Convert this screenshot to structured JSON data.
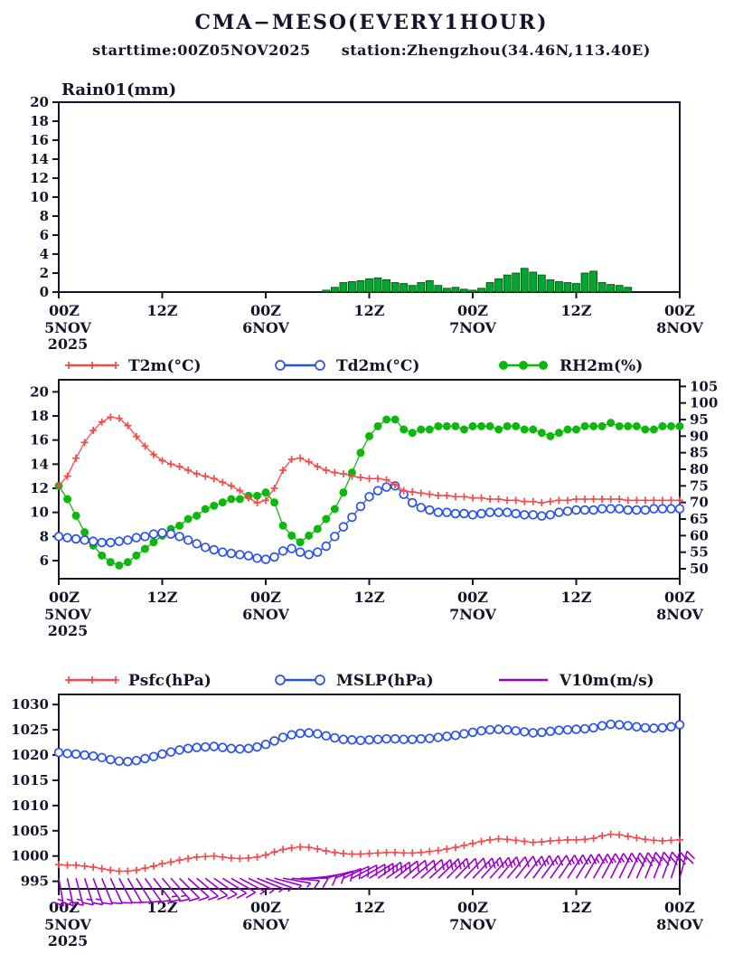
{
  "header": {
    "title": "CMA−MESO(EVERY1HOUR)",
    "starttime": "starttime:00Z05NOV2025",
    "station": "station:Zhengzhou(34.46N,113.40E)"
  },
  "colors": {
    "text": "#14142a",
    "red": "#f24b4b",
    "blue": "#2a52e8",
    "green": "#0cb80c",
    "rain_fill": "#00a633",
    "rain_edge": "#004d00",
    "purple": "#9a00cc"
  },
  "time_axis": {
    "step_hours": 1,
    "total_hours": 72,
    "tick_hours": [
      0,
      12,
      24,
      36,
      48,
      60,
      72
    ],
    "tick_labels": [
      "00Z",
      "12Z",
      "00Z",
      "12Z",
      "00Z",
      "12Z",
      "00Z"
    ],
    "date_labels": [
      {
        "hour": 0,
        "text": "5NOV",
        "text2": "2025"
      },
      {
        "hour": 24,
        "text": "6NOV"
      },
      {
        "hour": 48,
        "text": "7NOV"
      },
      {
        "hour": 72,
        "text": "8NOV"
      }
    ]
  },
  "chart_data": [
    {
      "type": "bar",
      "title": "Rain01(mm)",
      "ylim": [
        0,
        20
      ],
      "yticks": [
        0,
        2,
        4,
        6,
        8,
        10,
        12,
        14,
        16,
        18,
        20
      ],
      "values": [
        0,
        0,
        0,
        0,
        0,
        0,
        0,
        0,
        0,
        0,
        0,
        0,
        0,
        0,
        0,
        0,
        0,
        0,
        0,
        0,
        0,
        0,
        0,
        0,
        0,
        0,
        0,
        0,
        0,
        0,
        0,
        0.2,
        0.5,
        1.0,
        1.1,
        1.2,
        1.4,
        1.5,
        1.3,
        1.0,
        0.9,
        0.7,
        1.0,
        1.2,
        0.7,
        0.4,
        0.5,
        0.3,
        0.2,
        0.4,
        1.0,
        1.4,
        1.8,
        2.0,
        2.5,
        2.1,
        1.8,
        1.3,
        1.1,
        1.0,
        0.9,
        2.0,
        2.2,
        1.0,
        0.8,
        0.7,
        0.5,
        0,
        0,
        0,
        0,
        0,
        0
      ]
    },
    {
      "type": "line",
      "left_ylim": [
        4.5,
        21
      ],
      "left_yticks": [
        6,
        8,
        10,
        12,
        14,
        16,
        18,
        20
      ],
      "right_ylim": [
        47,
        107
      ],
      "right_yticks": [
        50,
        55,
        60,
        65,
        70,
        75,
        80,
        85,
        90,
        95,
        100,
        105
      ],
      "series": [
        {
          "name": "T2m(°C)",
          "marker": "plus",
          "color": "red",
          "axis": "left",
          "values": [
            12.2,
            13.0,
            14.5,
            15.8,
            16.8,
            17.5,
            17.9,
            17.8,
            17.2,
            16.3,
            15.5,
            14.8,
            14.3,
            14.0,
            13.8,
            13.5,
            13.2,
            13.0,
            12.8,
            12.5,
            12.2,
            11.8,
            11.2,
            10.8,
            11.0,
            12.0,
            13.5,
            14.4,
            14.5,
            14.2,
            13.8,
            13.5,
            13.3,
            13.2,
            13.0,
            12.9,
            12.8,
            12.8,
            12.7,
            12.3,
            11.8,
            11.7,
            11.6,
            11.5,
            11.4,
            11.4,
            11.3,
            11.3,
            11.2,
            11.2,
            11.1,
            11.1,
            11.0,
            11.0,
            10.9,
            10.9,
            10.8,
            10.9,
            11.0,
            11.0,
            11.1,
            11.1,
            11.1,
            11.1,
            11.1,
            11.1,
            11.0,
            11.0,
            11.0,
            11.0,
            11.0,
            11.0,
            11.0
          ]
        },
        {
          "name": "Td2m(°C)",
          "marker": "open-circle",
          "color": "blue",
          "axis": "left",
          "values": [
            8.0,
            7.9,
            7.8,
            7.7,
            7.6,
            7.5,
            7.5,
            7.6,
            7.7,
            7.9,
            8.0,
            8.2,
            8.3,
            8.2,
            8.0,
            7.7,
            7.4,
            7.1,
            6.9,
            6.7,
            6.6,
            6.5,
            6.4,
            6.2,
            6.1,
            6.3,
            6.8,
            7.0,
            6.7,
            6.5,
            6.7,
            7.2,
            8.0,
            8.8,
            9.6,
            10.5,
            11.3,
            11.8,
            12.1,
            12.2,
            11.5,
            10.8,
            10.4,
            10.2,
            10.0,
            10.0,
            9.9,
            9.9,
            9.8,
            9.9,
            10.0,
            10.0,
            10.0,
            9.9,
            9.8,
            9.8,
            9.7,
            9.8,
            10.0,
            10.1,
            10.2,
            10.2,
            10.2,
            10.3,
            10.3,
            10.3,
            10.2,
            10.2,
            10.2,
            10.3,
            10.3,
            10.3,
            10.3
          ]
        },
        {
          "name": "RH2m(%)",
          "marker": "filled-circle",
          "color": "green",
          "axis": "right",
          "values": [
            75,
            71,
            66,
            61,
            57,
            54,
            52,
            51,
            52,
            54,
            56,
            58,
            60,
            62,
            63,
            65,
            66,
            68,
            69,
            70,
            71,
            71,
            72,
            72,
            73,
            70,
            63,
            60,
            58,
            60,
            62,
            65,
            68,
            73,
            79,
            85,
            90,
            93,
            95,
            95,
            92,
            91,
            92,
            92,
            93,
            93,
            93,
            92,
            93,
            93,
            93,
            92,
            93,
            93,
            92,
            92,
            91,
            90,
            91,
            92,
            92,
            93,
            93,
            93,
            94,
            93,
            93,
            93,
            92,
            92,
            93,
            93,
            93
          ]
        }
      ]
    },
    {
      "type": "line+barbs",
      "ylim": [
        993.5,
        1032
      ],
      "yticks": [
        995,
        1000,
        1005,
        1010,
        1015,
        1020,
        1025,
        1030
      ],
      "series": [
        {
          "name": "Psfc(hPa)",
          "marker": "plus",
          "color": "red",
          "values": [
            998.3,
            998.2,
            998.2,
            998.0,
            997.8,
            997.5,
            997.2,
            997.0,
            997.0,
            997.2,
            997.6,
            998.0,
            998.5,
            998.8,
            999.2,
            999.5,
            999.8,
            999.9,
            1000.0,
            999.8,
            999.6,
            999.5,
            999.6,
            999.8,
            1000.2,
            1000.8,
            1001.3,
            1001.6,
            1001.8,
            1001.7,
            1001.4,
            1001.0,
            1000.7,
            1000.5,
            1000.4,
            1000.4,
            1000.5,
            1000.6,
            1000.7,
            1000.7,
            1000.6,
            1000.6,
            1000.7,
            1000.9,
            1001.1,
            1001.4,
            1001.7,
            1002.1,
            1002.5,
            1002.9,
            1003.2,
            1003.4,
            1003.3,
            1003.1,
            1002.9,
            1002.7,
            1002.8,
            1003.0,
            1003.1,
            1003.2,
            1003.2,
            1003.3,
            1003.5,
            1004.0,
            1004.3,
            1004.2,
            1003.9,
            1003.6,
            1003.3,
            1003.1,
            1003.0,
            1003.1,
            1003.2
          ]
        },
        {
          "name": "MSLP(hPa)",
          "marker": "open-circle",
          "color": "blue",
          "values": [
            1020.5,
            1020.3,
            1020.2,
            1020.0,
            1019.8,
            1019.5,
            1019.1,
            1018.8,
            1018.7,
            1018.9,
            1019.3,
            1019.7,
            1020.2,
            1020.6,
            1021.0,
            1021.3,
            1021.5,
            1021.6,
            1021.7,
            1021.5,
            1021.3,
            1021.2,
            1021.3,
            1021.6,
            1022.1,
            1022.8,
            1023.5,
            1024.0,
            1024.3,
            1024.4,
            1024.2,
            1023.8,
            1023.4,
            1023.1,
            1023.0,
            1022.9,
            1023.0,
            1023.1,
            1023.2,
            1023.2,
            1023.1,
            1023.1,
            1023.2,
            1023.3,
            1023.5,
            1023.7,
            1023.9,
            1024.2,
            1024.5,
            1024.8,
            1025.0,
            1025.1,
            1025.0,
            1024.8,
            1024.6,
            1024.4,
            1024.5,
            1024.7,
            1024.9,
            1025.0,
            1025.1,
            1025.2,
            1025.4,
            1025.8,
            1026.1,
            1026.0,
            1025.8,
            1025.6,
            1025.4,
            1025.3,
            1025.4,
            1025.6,
            1026.0
          ]
        }
      ],
      "wind": {
        "name": "V10m(m/s)",
        "barb_half_ms": 2,
        "barb_full_ms": 4,
        "speed": [
          6,
          6,
          5,
          5,
          5,
          4,
          4,
          4,
          4,
          4,
          4,
          4,
          5,
          5,
          4,
          4,
          4,
          3,
          3,
          3,
          3,
          2,
          2,
          2,
          2,
          2,
          2,
          3,
          3,
          3,
          3,
          4,
          4,
          4,
          4,
          4,
          5,
          5,
          5,
          4,
          4,
          4,
          4,
          5,
          5,
          5,
          4,
          4,
          5,
          5,
          5,
          5,
          4,
          4,
          5,
          5,
          5,
          4,
          5,
          5,
          5,
          6,
          6,
          6,
          6,
          6,
          7,
          7,
          8,
          8,
          8,
          8,
          8
        ],
        "dir": [
          170,
          168,
          165,
          162,
          160,
          158,
          155,
          152,
          150,
          148,
          145,
          142,
          140,
          138,
          135,
          132,
          130,
          128,
          125,
          122,
          120,
          118,
          115,
          112,
          110,
          105,
          100,
          95,
          90,
          85,
          80,
          75,
          70,
          65,
          62,
          60,
          58,
          55,
          55,
          52,
          50,
          50,
          48,
          48,
          46,
          45,
          45,
          44,
          44,
          42,
          42,
          40,
          40,
          38,
          38,
          36,
          36,
          35,
          34,
          33,
          32,
          30,
          30,
          28,
          27,
          26,
          25,
          24,
          22,
          21,
          20,
          18,
          15
        ]
      }
    }
  ]
}
